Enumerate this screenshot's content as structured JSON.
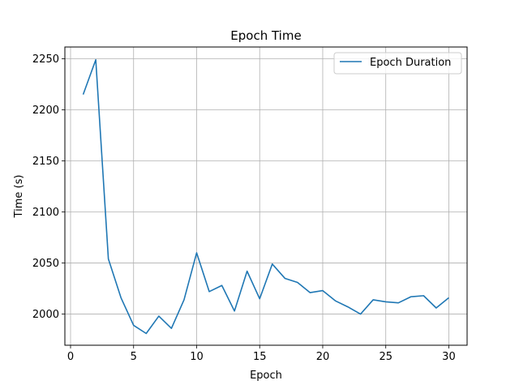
{
  "chart_data": {
    "type": "line",
    "title": "Epoch Time",
    "xlabel": "Epoch",
    "ylabel": "Time (s)",
    "xlim": [
      -0.45,
      31.45
    ],
    "ylim": [
      1969.5,
      2261.5
    ],
    "xticks": [
      0,
      5,
      10,
      15,
      20,
      25,
      30
    ],
    "yticks": [
      2000,
      2050,
      2100,
      2150,
      2200,
      2250
    ],
    "grid": true,
    "legend_position": "upper right",
    "series": [
      {
        "name": "Epoch Duration",
        "color": "#1f77b4",
        "x": [
          1,
          2,
          3,
          4,
          5,
          6,
          7,
          8,
          9,
          10,
          11,
          12,
          13,
          14,
          15,
          16,
          17,
          18,
          19,
          20,
          21,
          22,
          23,
          24,
          25,
          26,
          27,
          28,
          29,
          30
        ],
        "y": [
          2215,
          2249,
          2054,
          2016,
          1989,
          1981,
          1998,
          1986,
          2014,
          2060,
          2022,
          2028,
          2003,
          2042,
          2015,
          2049,
          2035,
          2031,
          2021,
          2023,
          2013,
          2007,
          2000,
          2014,
          2012,
          2011,
          2017,
          2018,
          2006,
          2016
        ]
      }
    ]
  }
}
